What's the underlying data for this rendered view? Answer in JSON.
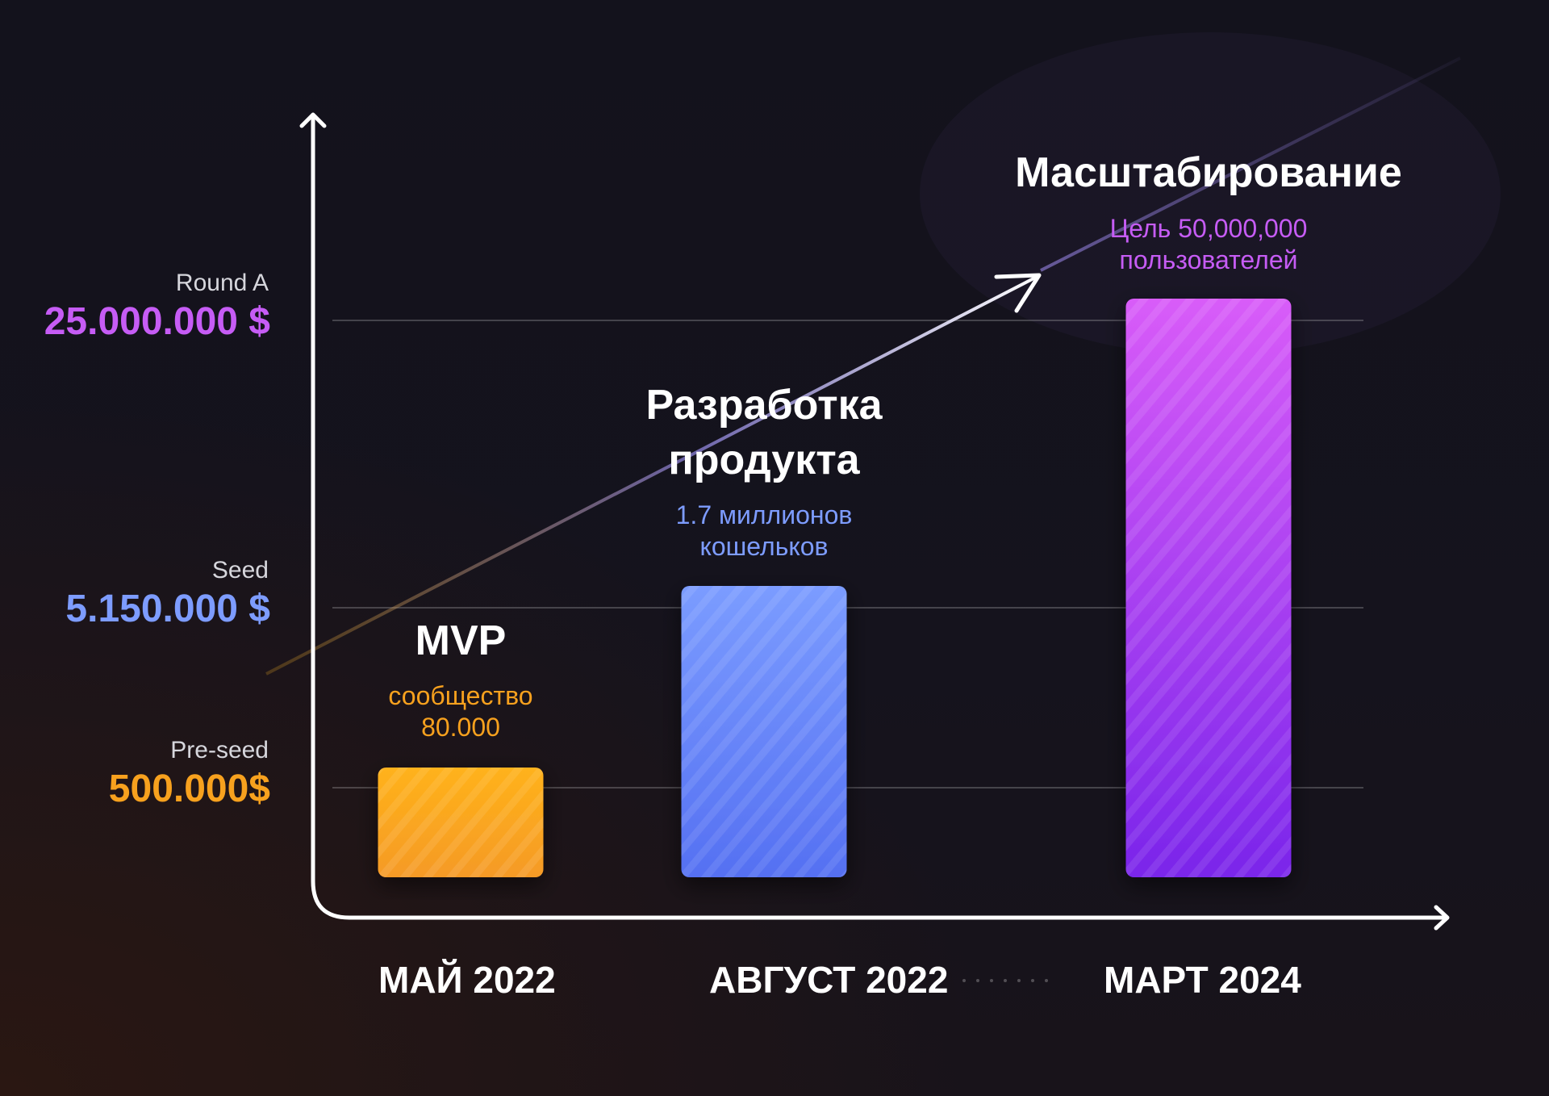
{
  "chart_data": {
    "type": "bar",
    "categories": [
      "МАЙ 2022",
      "АВГУСТ 2022",
      "МАРТ 2024"
    ],
    "values": [
      500000,
      5150000,
      25000000
    ],
    "ylabel": "",
    "xlabel": "",
    "funding_rounds": [
      {
        "name": "Pre-seed",
        "amount": "500.000$",
        "value": 500000,
        "color": "#f7a11e"
      },
      {
        "name": "Seed",
        "amount": "5.150.000 $",
        "value": 5150000,
        "color": "#7d9cff"
      },
      {
        "name": "Round A",
        "amount": "25.000.000 $",
        "value": 25000000,
        "color": "#c65cf5"
      }
    ],
    "stages": [
      {
        "title_lines": [
          "MVP"
        ],
        "subtitle_lines": [
          "сообщество",
          "80.000"
        ],
        "color": "#f7a11e"
      },
      {
        "title_lines": [
          "Разработка",
          "продукта"
        ],
        "subtitle_lines": [
          "1.7 миллионов",
          "кошельков"
        ],
        "color": "#7d9cff"
      },
      {
        "title_lines": [
          "Масштабирование"
        ],
        "subtitle_lines": [
          "Цель 50,000,000",
          "пользователей"
        ],
        "color": "#c65cf5"
      }
    ],
    "bar_gradients": [
      [
        "#ffb21a",
        "#f59a26"
      ],
      [
        "#7b9cff",
        "#5570f2"
      ],
      [
        "#d85cf8",
        "#7a25ea"
      ]
    ],
    "grid": true,
    "trend_arrow": true
  }
}
